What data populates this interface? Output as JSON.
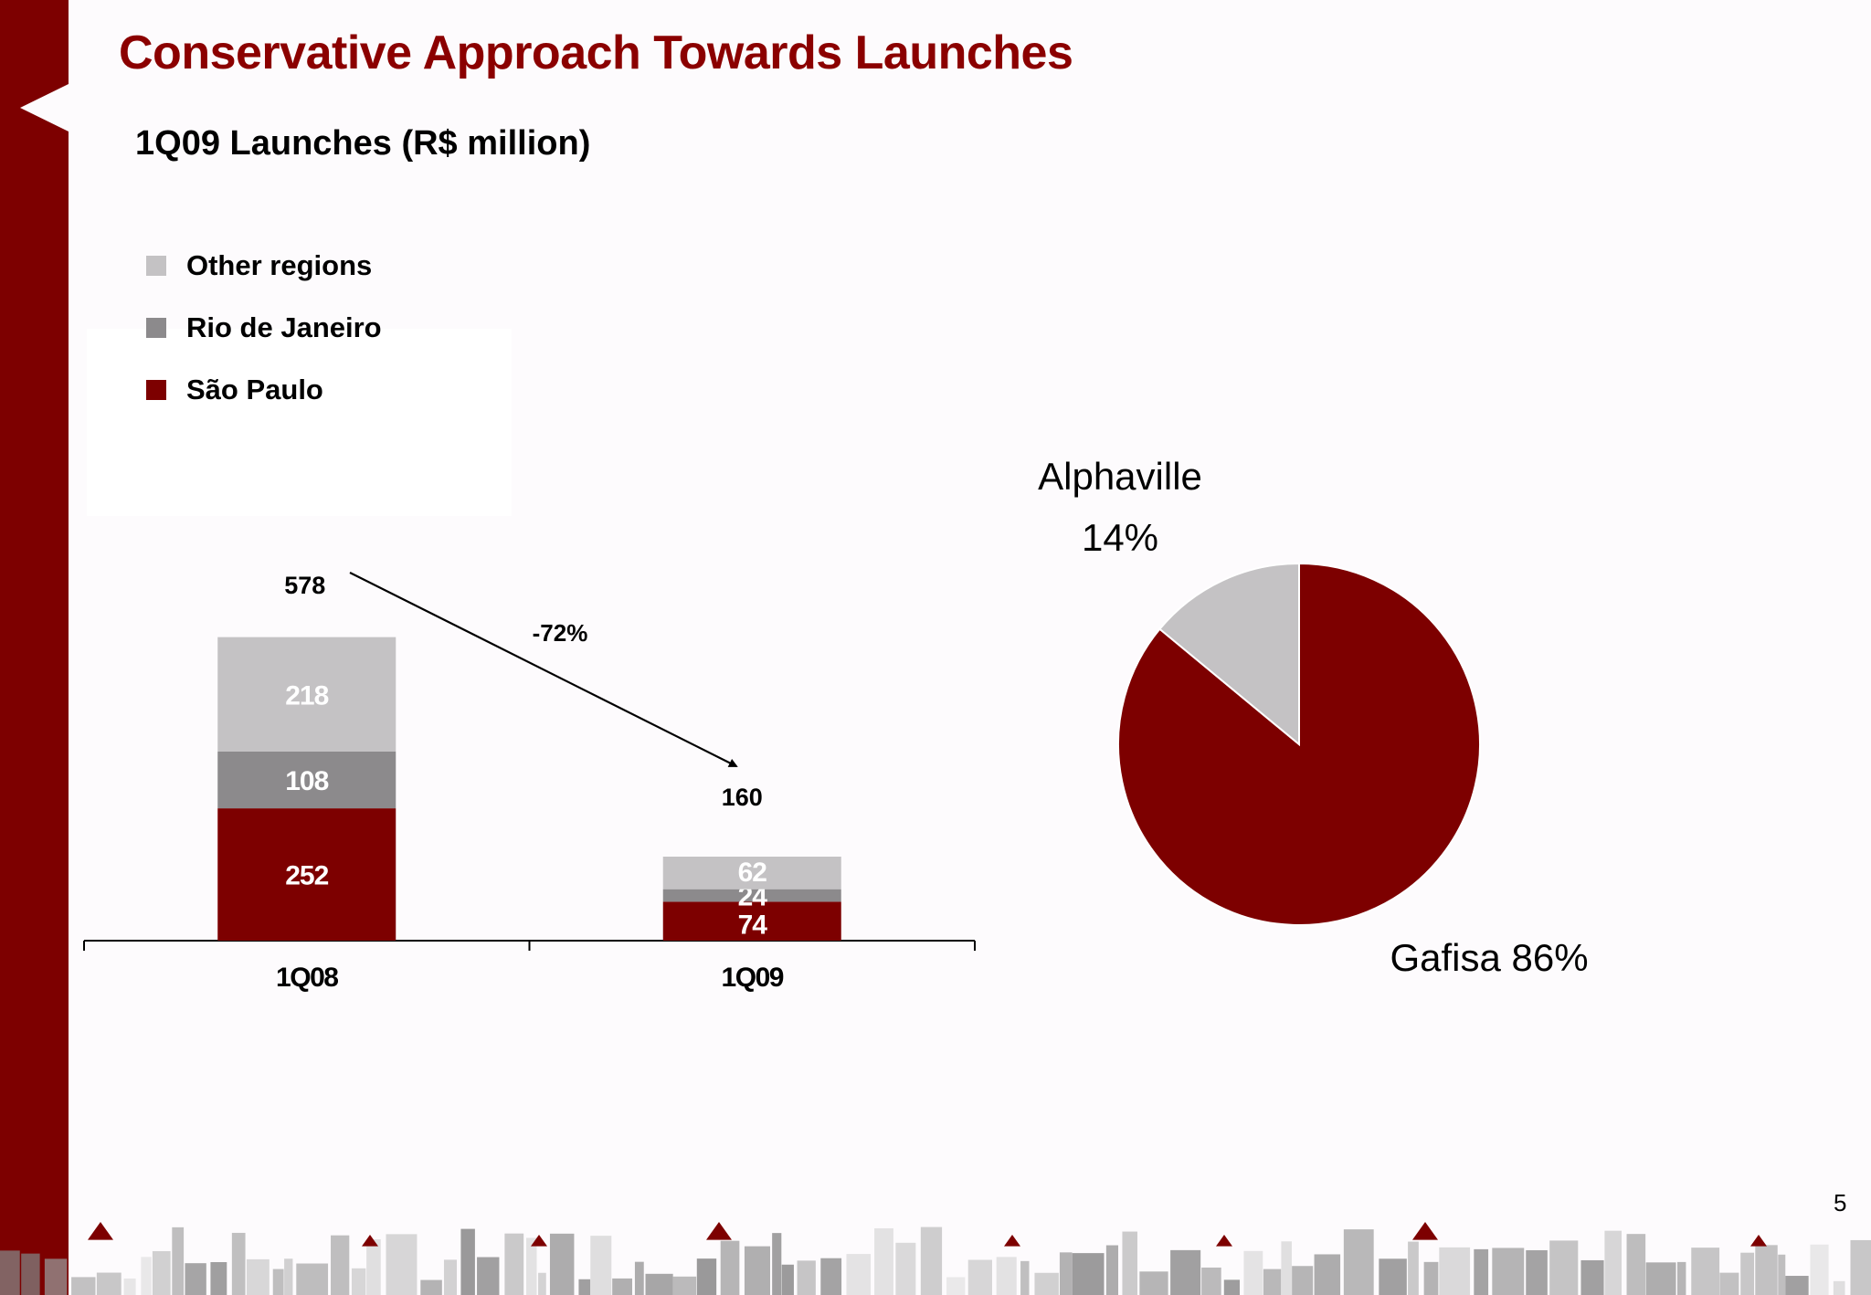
{
  "slide": {
    "title": "Conservative Approach Towards Launches",
    "page_number": "5"
  },
  "colors": {
    "brand": "#7d0000",
    "sao_paulo": "#7d0000",
    "rio": "#8c8a8c",
    "other": "#c4c2c4"
  },
  "chart_data": [
    {
      "type": "bar",
      "stacked": true,
      "title": "1Q09 Launches (R$ million)",
      "categories": [
        "1Q08",
        "1Q09"
      ],
      "series": [
        {
          "name": "São Paulo",
          "values": [
            252,
            74
          ],
          "color": "#7d0000"
        },
        {
          "name": "Rio de Janeiro",
          "values": [
            108,
            24
          ],
          "color": "#8c8a8c"
        },
        {
          "name": "Other regions",
          "values": [
            218,
            62
          ],
          "color": "#c4c2c4"
        }
      ],
      "totals": [
        578,
        160
      ],
      "change_label": "-72%",
      "legend": [
        "Other regions",
        "Rio de Janeiro",
        "São Paulo"
      ],
      "legend_position": "top-left",
      "grid": false
    },
    {
      "type": "pie",
      "slices": [
        {
          "name": "Gafisa",
          "value": 86,
          "label": "Gafisa 86%",
          "color": "#7d0000"
        },
        {
          "name": "Alphaville",
          "value": 14,
          "label_line1": "Alphaville",
          "label_line2": "14%",
          "color": "#c4c2c4"
        }
      ]
    }
  ]
}
